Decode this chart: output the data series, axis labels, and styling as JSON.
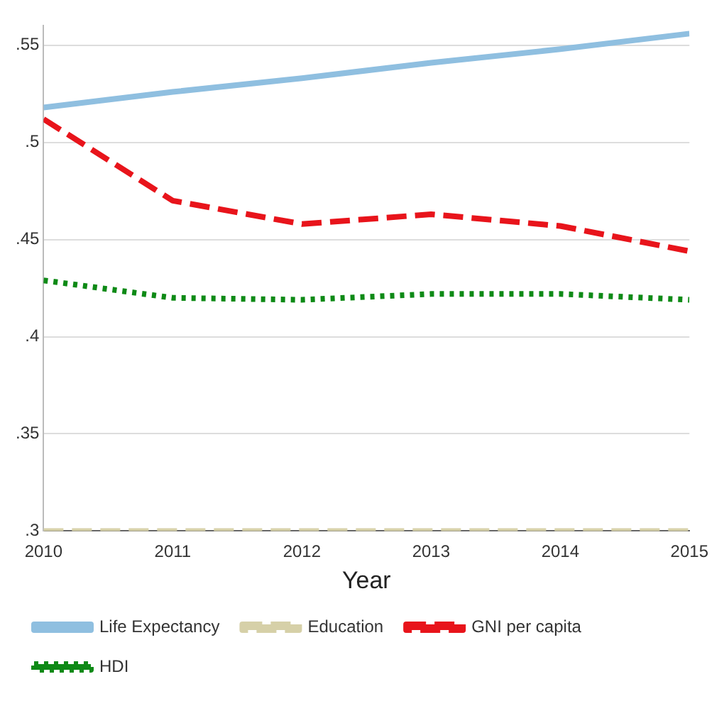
{
  "chart_data": {
    "type": "line",
    "xlabel": "Year",
    "x": [
      2010,
      2011,
      2012,
      2013,
      2014,
      2015
    ],
    "series": [
      {
        "name": "Life Expectancy",
        "color": "#8fbfe0",
        "line_style": "solid",
        "values": [
          0.518,
          0.526,
          0.533,
          0.541,
          0.548,
          0.556
        ]
      },
      {
        "name": "Education",
        "color": "#d6d0a8",
        "line_style": "dashed",
        "values": [
          0.3,
          0.3,
          0.3,
          0.3,
          0.3,
          0.3
        ]
      },
      {
        "name": "GNI per capita",
        "color": "#e8141b",
        "line_style": "dashed",
        "values": [
          0.512,
          0.47,
          0.458,
          0.463,
          0.457,
          0.444
        ]
      },
      {
        "name": "HDI",
        "color": "#0e8a16",
        "line_style": "dotted",
        "values": [
          0.429,
          0.42,
          0.419,
          0.422,
          0.422,
          0.419
        ]
      }
    ],
    "xlim": [
      2010,
      2015
    ],
    "xticks": [
      2010,
      2011,
      2012,
      2013,
      2014,
      2015
    ],
    "ylim": [
      0.3,
      0.56
    ],
    "yticks": [
      {
        "value": 0.3,
        "label": ".3"
      },
      {
        "value": 0.35,
        "label": ".35"
      },
      {
        "value": 0.4,
        "label": ".4"
      },
      {
        "value": 0.45,
        "label": ".45"
      },
      {
        "value": 0.5,
        "label": ".5"
      },
      {
        "value": 0.55,
        "label": ".55"
      }
    ],
    "grid": "y",
    "legend": "bottom",
    "marker": "none"
  }
}
